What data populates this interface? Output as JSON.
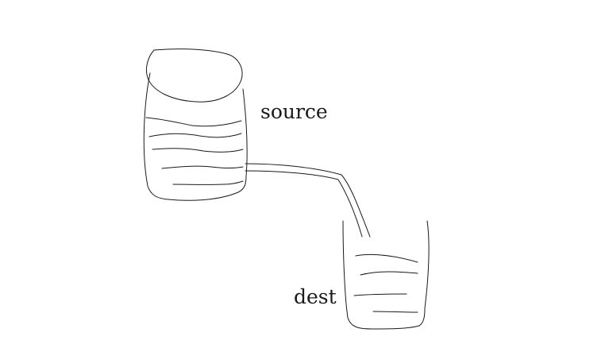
{
  "diagram": {
    "labels": {
      "source": "source",
      "dest": "dest"
    },
    "colors": {
      "background": "#ffffff",
      "stroke": "#1a1a1a"
    }
  }
}
